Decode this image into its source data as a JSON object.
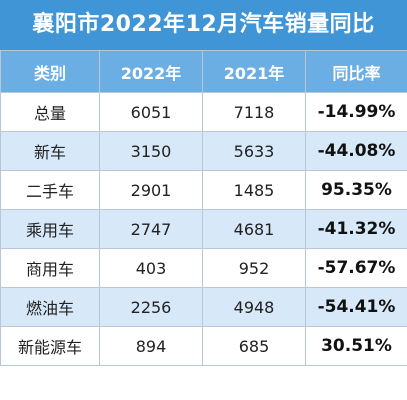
{
  "title": "襄阳市2022年12月汽车销量同比",
  "headers": [
    "类别",
    "2022年",
    "2021年",
    "同比率"
  ],
  "rows": [
    {
      "category": "总量",
      "y2022": "6051",
      "y2021": "7118",
      "ratio": "-14.99%"
    },
    {
      "category": "新车",
      "y2022": "3150",
      "y2021": "5633",
      "ratio": "-44.08%"
    },
    {
      "category": "二手车",
      "y2022": "2901",
      "y2021": "1485",
      "ratio": "95.35%"
    },
    {
      "category": "乘用车",
      "y2022": "2747",
      "y2021": "4681",
      "ratio": "-41.32%"
    },
    {
      "category": "商用车",
      "y2022": "403",
      "y2021": "952",
      "ratio": "-57.67%"
    },
    {
      "category": "燃油车",
      "y2022": "2256",
      "y2021": "4948",
      "ratio": "-54.41%"
    },
    {
      "category": "新能源车",
      "y2022": "894",
      "y2021": "685",
      "ratio": "30.51%"
    }
  ],
  "colors": {
    "title_bg": "#3f95d6",
    "header_bg": "#6aaee3",
    "alt_row_bg": "#d7e8f8",
    "border": "#b9c6d3"
  }
}
